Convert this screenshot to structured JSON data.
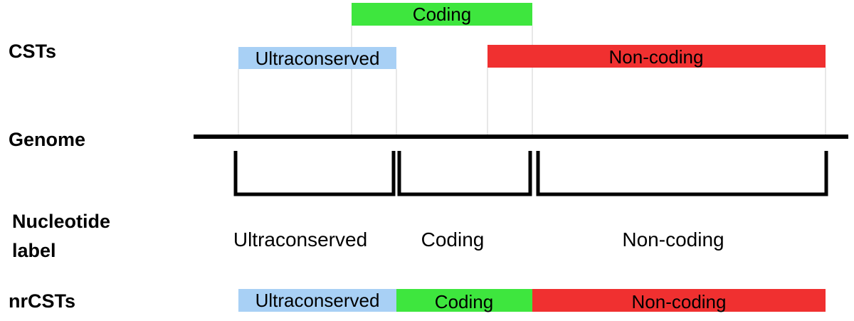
{
  "row_labels": {
    "csts": "CSTs",
    "genome": "Genome",
    "nucleotide_line1": "Nucleotide",
    "nucleotide_line2": "label",
    "nrcsts": "nrCSTs"
  },
  "csts": {
    "ultraconserved": "Ultraconserved",
    "coding": "Coding",
    "noncoding": "Non-coding"
  },
  "nucleotide_labels": {
    "ultraconserved": "Ultraconserved",
    "coding": "Coding",
    "noncoding": "Non-coding"
  },
  "nrcsts": {
    "ultraconserved": "Ultraconserved",
    "coding": "Coding",
    "noncoding": "Non-coding"
  },
  "colors": {
    "ultraconserved": "#a8d0f5",
    "coding": "#3ee63e",
    "noncoding": "#f03030",
    "genome_line": "#000000",
    "guide_line": "#d8d8d8"
  }
}
